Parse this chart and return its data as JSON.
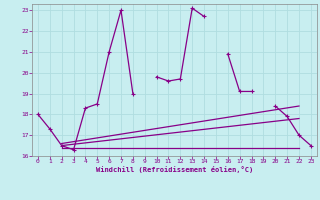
{
  "xlabel": "Windchill (Refroidissement éolien,°C)",
  "xlim": [
    -0.5,
    23.5
  ],
  "ylim": [
    16,
    23.3
  ],
  "yticks": [
    16,
    17,
    18,
    19,
    20,
    21,
    22,
    23
  ],
  "xticks": [
    0,
    1,
    2,
    3,
    4,
    5,
    6,
    7,
    8,
    9,
    10,
    11,
    12,
    13,
    14,
    15,
    16,
    17,
    18,
    19,
    20,
    21,
    22,
    23
  ],
  "background_color": "#c8eef0",
  "grid_color": "#b0dde0",
  "line_color": "#880088",
  "series_main": {
    "x": [
      0,
      1,
      2,
      3,
      4,
      5,
      6,
      7,
      8,
      10,
      11,
      12,
      13,
      14,
      16,
      17,
      18,
      20,
      21,
      22,
      23
    ],
    "y": [
      18.0,
      17.3,
      16.5,
      16.3,
      18.3,
      18.5,
      21.0,
      23.0,
      19.0,
      19.8,
      19.6,
      19.7,
      23.1,
      22.7,
      20.9,
      19.1,
      19.1,
      18.4,
      17.9,
      17.0,
      16.5
    ],
    "segments": [
      {
        "x": [
          0,
          1,
          2,
          3,
          4,
          5,
          6,
          7,
          8
        ],
        "y": [
          18.0,
          17.3,
          16.5,
          16.3,
          18.3,
          18.5,
          21.0,
          23.0,
          19.0
        ]
      },
      {
        "x": [
          10,
          11,
          12,
          13,
          14
        ],
        "y": [
          19.8,
          19.6,
          19.7,
          23.1,
          22.7
        ]
      },
      {
        "x": [
          16,
          17,
          18
        ],
        "y": [
          20.9,
          19.1,
          19.1
        ]
      },
      {
        "x": [
          20,
          21,
          22,
          23
        ],
        "y": [
          18.4,
          17.9,
          17.0,
          16.5
        ]
      }
    ]
  },
  "series_flat": [
    {
      "x": [
        2,
        22
      ],
      "y": [
        16.4,
        16.4
      ]
    },
    {
      "x": [
        2,
        22
      ],
      "y": [
        16.5,
        17.8
      ]
    },
    {
      "x": [
        2,
        22
      ],
      "y": [
        16.6,
        18.4
      ]
    }
  ]
}
